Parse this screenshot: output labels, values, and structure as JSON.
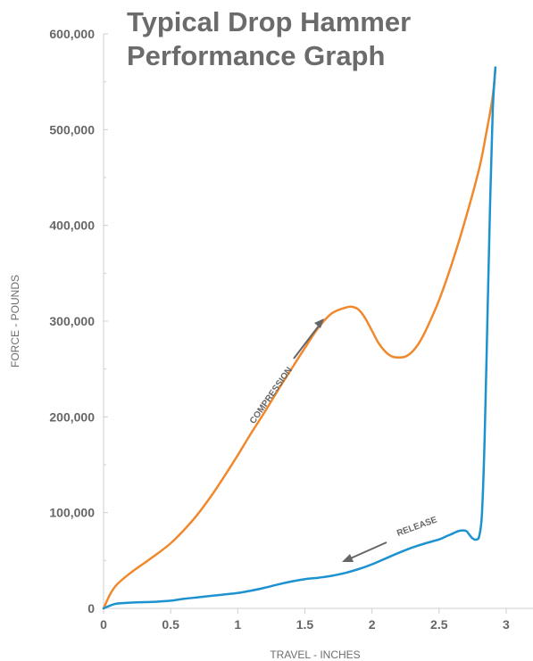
{
  "chart_data": {
    "type": "line",
    "title": "Typical Drop Hammer Performance Graph",
    "title_lines": [
      "Typical Drop Hammer",
      "Performance Graph"
    ],
    "xlabel": "TRAVEL - INCHES",
    "ylabel": "FORCE - POUNDS",
    "xlim": [
      0,
      3.2
    ],
    "ylim": [
      0,
      600000
    ],
    "x_ticks": [
      0,
      0.5,
      1,
      1.5,
      2,
      2.5,
      3
    ],
    "x_tick_labels": [
      "0",
      "0.5",
      "1",
      "1.5",
      "2",
      "2.5",
      "3"
    ],
    "y_ticks": [
      0,
      100000,
      200000,
      300000,
      400000,
      500000,
      600000
    ],
    "y_tick_labels": [
      "0",
      "100,000",
      "200,000",
      "300,000",
      "400,000",
      "500,000",
      "600,000"
    ],
    "grid": false,
    "series": [
      {
        "color": "#f0892d",
        "x": [
          0,
          0.05,
          0.1,
          0.2,
          0.3,
          0.4,
          0.5,
          0.6,
          0.7,
          0.8,
          0.9,
          1.0,
          1.1,
          1.2,
          1.3,
          1.4,
          1.5,
          1.6,
          1.7,
          1.8,
          1.85,
          1.9,
          1.95,
          2.0,
          2.05,
          2.1,
          2.15,
          2.2,
          2.25,
          2.3,
          2.35,
          2.4,
          2.5,
          2.6,
          2.7,
          2.8,
          2.85,
          2.9,
          2.92
        ],
        "y": [
          0,
          15000,
          25000,
          37000,
          47000,
          57000,
          68000,
          82000,
          98000,
          117000,
          138000,
          160000,
          183000,
          205000,
          228000,
          250000,
          272000,
          293000,
          308000,
          314000,
          315000,
          312000,
          303000,
          290000,
          277000,
          268000,
          263000,
          262000,
          263000,
          268000,
          277000,
          290000,
          322000,
          362000,
          408000,
          460000,
          495000,
          535000,
          565000
        ]
      },
      {
        "color": "#1d92d0",
        "x": [
          0,
          0.05,
          0.1,
          0.2,
          0.3,
          0.4,
          0.5,
          0.6,
          0.7,
          0.8,
          0.9,
          1.0,
          1.1,
          1.2,
          1.3,
          1.4,
          1.5,
          1.6,
          1.7,
          1.8,
          1.9,
          2.0,
          2.1,
          2.2,
          2.3,
          2.4,
          2.5,
          2.55,
          2.6,
          2.65,
          2.7,
          2.72,
          2.75,
          2.78,
          2.8,
          2.82,
          2.84,
          2.86,
          2.88,
          2.9,
          2.92
        ],
        "y": [
          0,
          3000,
          5000,
          6000,
          6500,
          7000,
          8000,
          10000,
          11500,
          13000,
          14500,
          16000,
          18500,
          21500,
          25000,
          28000,
          30500,
          32000,
          34000,
          37000,
          41000,
          46000,
          52000,
          58000,
          63500,
          68000,
          72000,
          75000,
          78000,
          81000,
          81000,
          78000,
          73000,
          72000,
          76000,
          100000,
          180000,
          300000,
          420000,
          520000,
          565000
        ]
      }
    ],
    "annotations": [
      {
        "text": "COMPRESSION",
        "series_index": 0
      },
      {
        "text": "RELEASE",
        "series_index": 1
      }
    ]
  }
}
